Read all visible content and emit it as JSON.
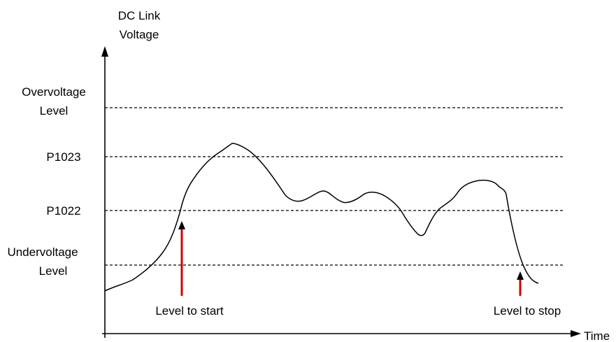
{
  "y_axis": {
    "label_line1": "DC Link",
    "label_line2": "Voltage"
  },
  "x_axis": {
    "label": "Time"
  },
  "levels": {
    "overvoltage": {
      "line1": "Overvoltage",
      "line2": "Level"
    },
    "p1023": {
      "label": "P1023"
    },
    "p1022": {
      "label": "P1022"
    },
    "undervoltage": {
      "line1": "Undervoltage",
      "line2": "Level"
    }
  },
  "markers": {
    "start": {
      "label": "Level to start"
    },
    "stop": {
      "label": "Level to stop"
    }
  },
  "colors": {
    "axis": "#000000",
    "curve": "#000000",
    "level_lines": "#000000",
    "marker_shaft": "#d40000",
    "marker_head": "#000000"
  }
}
